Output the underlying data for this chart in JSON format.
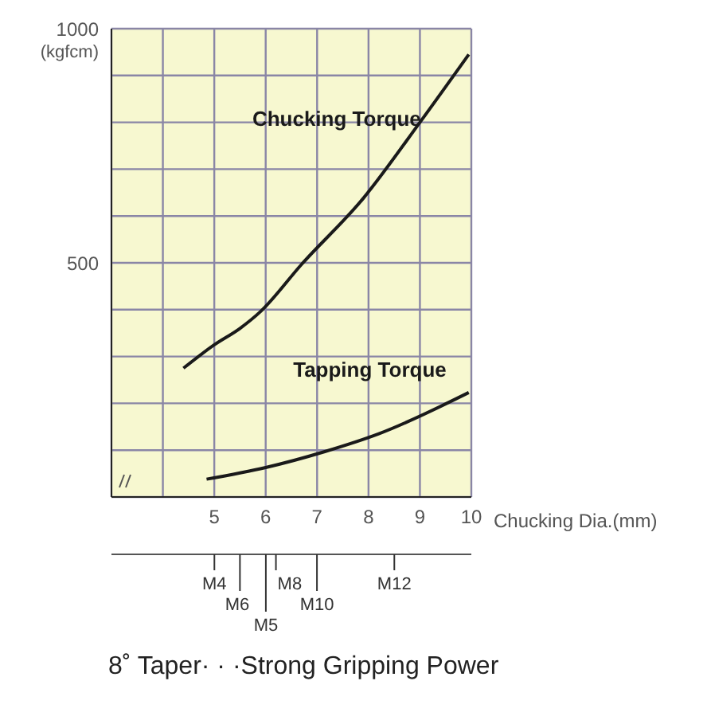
{
  "chart_data": {
    "type": "line",
    "xlabel": "Chucking Dia.(mm)",
    "ylabel": "(kgfcm)",
    "xlim": [
      3,
      10
    ],
    "xticks": [
      {
        "value": 4,
        "label": null
      },
      5,
      6,
      7,
      8,
      9,
      10
    ],
    "ylim": [
      0,
      1000
    ],
    "yticks": [
      {
        "value": 100,
        "label": null
      },
      {
        "value": 200,
        "label": null
      },
      {
        "value": 300,
        "label": null
      },
      {
        "value": 400,
        "label": null
      },
      500,
      {
        "value": 600,
        "label": null
      },
      {
        "value": 700,
        "label": null
      },
      {
        "value": 800,
        "label": null
      },
      {
        "value": 900,
        "label": null
      },
      1000
    ],
    "grid": true,
    "marker": "none",
    "line_style": "solid",
    "series": [
      {
        "name": "Chucking Torque",
        "color": "#1a1a1a",
        "x": [
          4.4,
          5.0,
          5.5,
          5.9,
          6.7,
          7.9,
          9.0,
          9.95
        ],
        "values": [
          275,
          325,
          360,
          396,
          497,
          638,
          800,
          945
        ]
      },
      {
        "name": "Tapping Torque",
        "color": "#1a1a1a",
        "x": [
          4.85,
          6.0,
          7.15,
          8.2,
          9.95
        ],
        "values": [
          38,
          63,
          97,
          135,
          223
        ]
      }
    ],
    "annotations": [
      "M4",
      "M6",
      "M5",
      "M8",
      "M10",
      "M12",
      "8˚ Taper· · ·Strong Gripping Power"
    ]
  }
}
